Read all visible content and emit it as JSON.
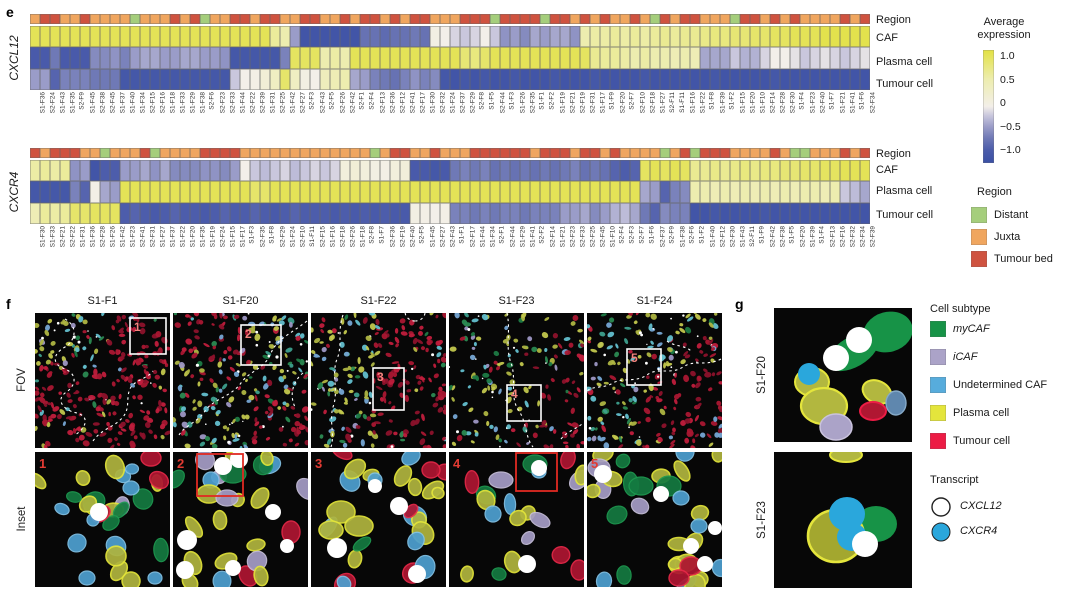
{
  "panel_e": {
    "letter": "e"
  },
  "heatmaps": {
    "colorbar": {
      "title": "Average expression",
      "ticks": [
        "1.0",
        "0.5",
        "0",
        "−0.5",
        "−1.0"
      ]
    },
    "region_legend": {
      "title": "Region",
      "items": [
        {
          "label": "Distant",
          "color": "#a5ce7c"
        },
        {
          "label": "Juxta",
          "color": "#f0a65f"
        },
        {
          "label": "Tumour bed",
          "color": "#cf5340"
        }
      ]
    },
    "region_colors": {
      "D": "#a5ce7c",
      "J": "#f0a65f",
      "T": "#cf5340"
    },
    "colormap_stops": [
      [
        -1,
        "#3a50a4"
      ],
      [
        -0.75,
        "#4d5dab"
      ],
      [
        -0.55,
        "#6f79b6"
      ],
      [
        -0.35,
        "#9a9cc8"
      ],
      [
        -0.15,
        "#c9c7dd"
      ],
      [
        0,
        "#f3efe9"
      ],
      [
        0.45,
        "#ededaf"
      ],
      [
        1,
        "#e2e143"
      ]
    ],
    "row_labels": [
      "Region",
      "CAF",
      "Plasma cell",
      "Tumour cell"
    ],
    "genes": [
      {
        "gene": "CXCL12",
        "columns": [
          "S1-F36",
          "S2-F24",
          "S1-F43",
          "S1-F35",
          "S2-F9",
          "S1-F45",
          "S2-F38",
          "S2-F45",
          "S1-F37",
          "S1-F40",
          "S1-F34",
          "S2-F15",
          "S2-F16",
          "S1-F18",
          "S1-F33",
          "S1-F29",
          "S1-F38",
          "S2-F6",
          "S2-F23",
          "S2-F33",
          "S1-F44",
          "S2-F22",
          "S2-F39",
          "S1-F31",
          "S2-F25",
          "S1-F42",
          "S2-F27",
          "S2-F3",
          "S2-F43",
          "S2-F5",
          "S2-F26",
          "S2-F42",
          "S2-F1",
          "S2-F4",
          "S2-F13",
          "S2-F36",
          "S2-F12",
          "S2-F41",
          "S2-F17",
          "S1-F30",
          "S2-F32",
          "S1-F24",
          "S2-F37",
          "S2-F29",
          "S2-F8",
          "S1-F5",
          "S2-F44",
          "S1-F3",
          "S1-F26",
          "S2-F35",
          "S1-F1",
          "S2-F2",
          "S1-F19",
          "S2-F21",
          "S2-F19",
          "S2-F31",
          "S1-F17",
          "S1-F9",
          "S2-F20",
          "S2-F7",
          "S2-F10",
          "S2-F18",
          "S1-F27",
          "S2-F11",
          "S1-F11",
          "S1-F16",
          "S1-F22",
          "S1-F8",
          "S1-F39",
          "S1-F2",
          "S1-F15",
          "S1-F20",
          "S1-F10",
          "S2-F14",
          "S2-F28",
          "S2-F30",
          "S1-F4",
          "S1-F23",
          "S2-F40",
          "S1-F7",
          "S1-F21",
          "S1-F41",
          "S1-F6",
          "S2-F34"
        ],
        "region": "JTTJJTJJJJDJJJTJTDJJTTJTTJJTTJJTJTTJTJTTJJJTTTDTTTTDTTJTJTJJTJDTJTTJJJDTTJTJTJJJJTJT",
        "rows": [
          {
            "name": "CAF",
            "values": [
              0.9,
              0.9,
              0.9,
              0.9,
              0.9,
              0.9,
              0.9,
              0.9,
              0.9,
              0.9,
              0.9,
              0.9,
              0.9,
              0.9,
              0.9,
              0.9,
              0.9,
              0.9,
              0.9,
              0.9,
              0.9,
              0.9,
              0.9,
              0.9,
              0.55,
              0.45,
              -0.35,
              -0.9,
              -0.9,
              -0.9,
              -0.9,
              -0.9,
              -0.9,
              -0.6,
              -0.6,
              -0.65,
              -0.6,
              -0.6,
              -0.55,
              -0.6,
              0.05,
              0.0,
              -0.1,
              -0.15,
              -0.1,
              0.0,
              -0.15,
              -0.4,
              -0.35,
              -0.45,
              -0.3,
              -0.35,
              -0.3,
              -0.3,
              -0.4,
              0.45,
              0.5,
              0.5,
              0.55,
              0.5,
              0.55,
              0.5,
              0.55,
              0.6,
              0.55,
              0.6,
              0.6,
              0.65,
              0.7,
              0.7,
              0.75,
              0.75,
              0.8,
              0.8,
              0.85,
              0.85,
              0.9,
              0.9,
              0.9,
              0.95,
              0.95,
              0.95,
              0.95,
              0.95
            ]
          },
          {
            "name": "Plasma cell",
            "values": [
              -0.8,
              -0.8,
              -0.55,
              -0.8,
              -0.8,
              -0.8,
              -0.45,
              -0.45,
              -0.4,
              -0.5,
              -0.35,
              -0.3,
              -0.3,
              -0.35,
              -0.35,
              -0.3,
              -0.3,
              -0.35,
              -0.35,
              -0.4,
              -0.85,
              -0.85,
              -0.85,
              -0.85,
              -0.85,
              -0.5,
              0.85,
              0.85,
              0.85,
              0.45,
              0.5,
              0.45,
              0.9,
              0.9,
              0.9,
              0.9,
              0.9,
              0.9,
              0.9,
              0.9,
              0.9,
              0.9,
              0.9,
              0.75,
              0.7,
              0.8,
              0.9,
              0.9,
              0.9,
              0.9,
              0.9,
              0.9,
              0.9,
              0.9,
              0.9,
              0.85,
              0.6,
              0.55,
              0.55,
              0.5,
              0.45,
              0.5,
              0.45,
              0.45,
              0.4,
              0.45,
              0.4,
              -0.3,
              -0.3,
              -0.3,
              -0.15,
              -0.25,
              -0.25,
              -0.1,
              0.0,
              0.0,
              -0.05,
              -0.15,
              -0.1,
              -0.05,
              -0.1,
              -0.15,
              -0.1,
              -0.05
            ]
          },
          {
            "name": "Tumour cell",
            "values": [
              -0.35,
              -0.35,
              -0.7,
              -0.5,
              -0.5,
              -0.5,
              -0.55,
              -0.55,
              -0.55,
              -0.85,
              -0.85,
              -0.85,
              -0.85,
              -0.85,
              -0.85,
              -0.85,
              -0.85,
              -0.85,
              -0.85,
              -0.85,
              -0.15,
              0.0,
              0.02,
              0.15,
              0.3,
              0.8,
              0.3,
              0.05,
              0.0,
              0.35,
              0.4,
              0.45,
              -0.3,
              -0.35,
              -0.5,
              -0.55,
              -0.6,
              -0.5,
              -0.4,
              -0.5,
              -0.45,
              -0.85,
              -0.9,
              -0.85,
              -0.9,
              -0.85,
              -0.9,
              -0.9,
              -0.85,
              -0.9,
              -0.9,
              -0.9,
              -0.85,
              -0.9,
              -0.9,
              -0.9,
              -0.85,
              -0.9,
              -0.9,
              -0.9,
              -0.9,
              -0.85,
              -0.9,
              -0.9,
              -0.9,
              -0.9,
              -0.9,
              -0.9,
              -0.85,
              -0.9,
              -0.9,
              -0.9,
              -0.9,
              -0.9,
              -0.85,
              -0.9,
              -0.9,
              -0.9,
              -0.9,
              -0.9,
              -0.9,
              -0.9,
              -0.9,
              -0.9
            ]
          }
        ]
      },
      {
        "gene": "CXCR4",
        "columns": [
          "S1-F30",
          "S1-F33",
          "S2-F21",
          "S2-F22",
          "S1-F31",
          "S1-F36",
          "S2-F28",
          "S1-F26",
          "S1-F42",
          "S1-F23",
          "S2-F41",
          "S2-F31",
          "S1-F27",
          "S1-F37",
          "S1-F22",
          "S1-F20",
          "S1-F35",
          "S1-F19",
          "S2-F24",
          "S1-F15",
          "S1-F17",
          "S1-F3",
          "S2-F35",
          "S1-F8",
          "S2-F29",
          "S1-F24",
          "S2-F10",
          "S1-F11",
          "S2-F15",
          "S1-F16",
          "S2-F18",
          "S2-F26",
          "S1-F18",
          "S2-F8",
          "S1-F7",
          "S2-F36",
          "S2-F19",
          "S2-F40",
          "S2-F5",
          "S1-F45",
          "S2-F27",
          "S2-F43",
          "S1-F1",
          "S2-F17",
          "S1-F44",
          "S1-F34",
          "S2-F1",
          "S2-F44",
          "S1-F29",
          "S1-F41",
          "S2-F2",
          "S2-F14",
          "S1-F21",
          "S2-F23",
          "S2-F33",
          "S2-F25",
          "S2-F45",
          "S1-F10",
          "S2-F4",
          "S2-F3",
          "S2-F7",
          "S1-F6",
          "S2-F37",
          "S2-F9",
          "S1-F38",
          "S2-F6",
          "S1-F2",
          "S1-F40",
          "S2-F12",
          "S2-F30",
          "S1-F43",
          "S2-F11",
          "S1-F9",
          "S2-F42",
          "S2-F38",
          "S1-F5",
          "S2-F20",
          "S1-F39",
          "S1-F4",
          "S2-F13",
          "S2-F16",
          "S2-F32",
          "S2-F34",
          "S2-F39"
        ],
        "region": "TJTTTJJDJJJTDJJJJTTTTJJJJJJJJJJJJJDJTTJJTJJJTTTTTTJTTTJTTJTJJJJDJTDTTTJJJJTJDDJJJTJT",
        "rows": [
          {
            "name": "CAF",
            "values": [
              0.5,
              0.55,
              0.5,
              0.55,
              -0.4,
              -0.35,
              -0.9,
              -0.75,
              -0.75,
              -0.35,
              -0.35,
              -0.3,
              -0.4,
              -0.3,
              -0.45,
              -0.45,
              -0.45,
              -0.4,
              -0.4,
              -0.45,
              -0.35,
              0.0,
              -0.15,
              -0.2,
              -0.15,
              -0.1,
              -0.2,
              -0.15,
              -0.1,
              -0.15,
              -0.1,
              0.1,
              0.15,
              0.1,
              0.05,
              0.02,
              0.1,
              0.12,
              -0.8,
              -0.8,
              -0.85,
              -0.8,
              -0.55,
              -0.5,
              -0.55,
              -0.5,
              -0.6,
              -0.55,
              -0.6,
              -0.55,
              -0.6,
              -0.55,
              -0.6,
              -0.55,
              -0.5,
              -0.6,
              -0.55,
              -0.6,
              -0.7,
              -0.75,
              -0.7,
              0.85,
              0.9,
              0.85,
              0.9,
              0.85,
              0.6,
              0.6,
              0.65,
              0.6,
              0.65,
              0.7,
              0.65,
              0.7,
              0.7,
              0.75,
              0.75,
              0.8,
              0.8,
              0.85,
              0.85,
              0.9,
              0.9,
              0.9
            ]
          },
          {
            "name": "Plasma cell",
            "values": [
              -0.85,
              -0.85,
              -0.85,
              -0.85,
              -0.5,
              -0.7,
              0.02,
              -0.3,
              -0.35,
              0.9,
              0.9,
              0.9,
              0.9,
              0.9,
              0.9,
              0.9,
              0.9,
              0.9,
              0.9,
              0.9,
              0.9,
              0.9,
              0.8,
              0.8,
              0.9,
              0.9,
              0.9,
              0.9,
              0.9,
              0.9,
              0.9,
              0.9,
              0.9,
              0.9,
              0.9,
              0.9,
              0.9,
              0.9,
              0.9,
              0.9,
              0.9,
              0.9,
              0.9,
              0.9,
              0.9,
              0.9,
              0.9,
              0.9,
              0.9,
              0.9,
              0.9,
              0.9,
              0.9,
              0.9,
              0.9,
              0.9,
              0.9,
              0.9,
              0.9,
              0.9,
              0.9,
              -0.3,
              -0.35,
              -0.7,
              -0.5,
              -0.45,
              0.45,
              0.45,
              0.4,
              0.45,
              0.4,
              0.45,
              0.4,
              0.45,
              0.4,
              0.45,
              0.4,
              0.45,
              0.45,
              0.4,
              0.45,
              -0.15,
              -0.2,
              -0.3
            ]
          },
          {
            "name": "Tumour cell",
            "values": [
              0.4,
              0.55,
              0.5,
              0.55,
              0.8,
              0.8,
              0.85,
              0.85,
              0.85,
              -0.75,
              -0.7,
              -0.75,
              -0.8,
              -0.75,
              -0.7,
              -0.75,
              -0.75,
              -0.8,
              -0.75,
              -0.7,
              -0.75,
              -0.75,
              -0.7,
              -0.75,
              -0.8,
              -0.75,
              -0.7,
              -0.75,
              -0.75,
              -0.75,
              -0.8,
              -0.75,
              -0.8,
              -0.75,
              -0.8,
              -0.75,
              -0.8,
              -0.8,
              0.05,
              0.02,
              0.0,
              0.02,
              -0.5,
              -0.5,
              -0.55,
              -0.5,
              -0.55,
              -0.5,
              -0.5,
              -0.55,
              -0.5,
              -0.5,
              -0.5,
              -0.35,
              -0.35,
              -0.3,
              -0.45,
              -0.35,
              -0.25,
              -0.2,
              -0.3,
              -0.55,
              -0.7,
              -0.45,
              -0.5,
              -0.5,
              -0.9,
              -0.9,
              -0.85,
              -0.9,
              -0.9,
              -0.9,
              -0.9,
              -0.85,
              -0.9,
              -0.9,
              -0.9,
              -0.9,
              -0.9,
              -0.9,
              -0.9,
              -0.9,
              -0.9,
              -0.9
            ]
          }
        ]
      }
    ]
  },
  "panel_f": {
    "letter": "f",
    "row_labels": [
      "FOV",
      "Inset"
    ],
    "columns": [
      {
        "title": "S1-F1",
        "number": "1"
      },
      {
        "title": "S1-F20",
        "number": "2"
      },
      {
        "title": "S1-F22",
        "number": "3"
      },
      {
        "title": "S1-F23",
        "number": "4"
      },
      {
        "title": "S1-F24",
        "number": "5"
      }
    ]
  },
  "panel_g": {
    "letter": "g",
    "images": [
      {
        "label": "S1-F20"
      },
      {
        "label": "S1-F23"
      }
    ],
    "cell_legend": {
      "title": "Cell subtype",
      "items": [
        {
          "label": "myCAF",
          "color": "#179347"
        },
        {
          "label": "iCAF",
          "color": "#aba3c8"
        },
        {
          "label": "Undetermined CAF",
          "color": "#57acdc"
        },
        {
          "label": "Plasma cell",
          "color": "#e4e53c"
        },
        {
          "label": "Tumour cell",
          "color": "#ec1c45"
        }
      ]
    },
    "transcript_legend": {
      "title": "Transcript",
      "items": [
        {
          "label": "CXCL12",
          "color": "#ffffff"
        },
        {
          "label": "CXCR4",
          "color": "#2aa7dc"
        }
      ]
    }
  }
}
